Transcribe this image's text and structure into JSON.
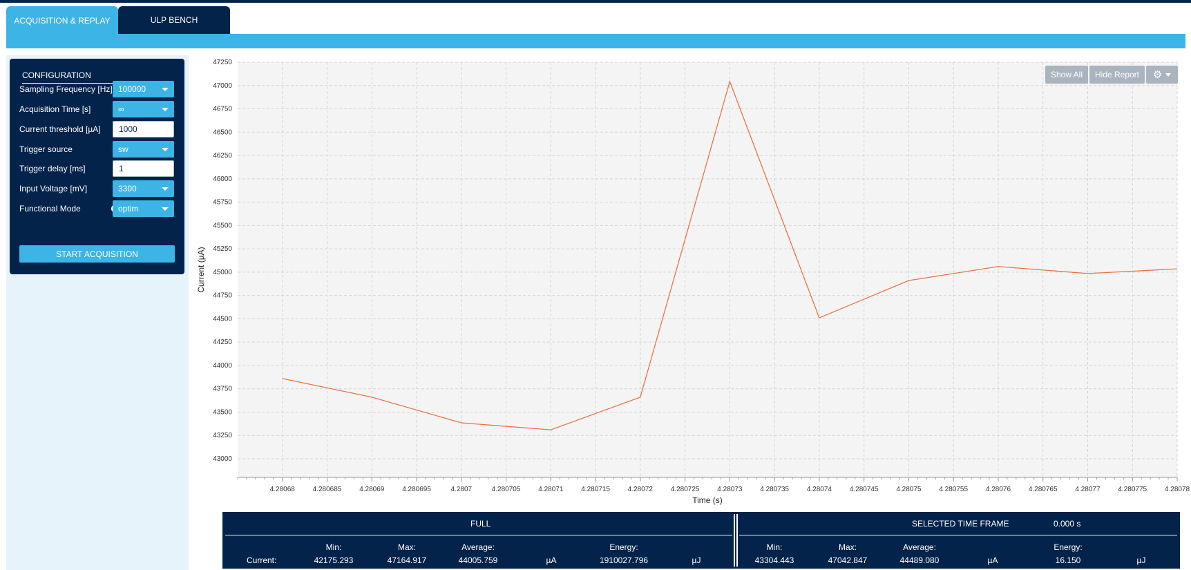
{
  "tabs": [
    {
      "label": "ACQUISITION & REPLAY",
      "active": true
    },
    {
      "label": "ULP BENCH",
      "active": false
    }
  ],
  "colors": {
    "navy": "#03234b",
    "accent": "#3cb4e6",
    "line": "#e8734a"
  },
  "config": {
    "title": "CONFIGURATION",
    "fields": [
      {
        "label": "Sampling Frequency [Hz]",
        "value": "100000",
        "type": "select"
      },
      {
        "label": "Acquisition Time [s]",
        "value": "∞",
        "type": "select"
      },
      {
        "label": "Current threshold [µA]",
        "value": "1000",
        "type": "input"
      },
      {
        "label": "Trigger source",
        "value": "sw",
        "type": "select"
      },
      {
        "label": "Trigger delay [ms]",
        "value": "1",
        "type": "input"
      },
      {
        "label": "Input Voltage [mV]",
        "value": "3300",
        "type": "select"
      },
      {
        "label": "Functional Mode",
        "value": "optim",
        "type": "select",
        "icon": "info-icon"
      }
    ],
    "start_label": "START ACQUISITION"
  },
  "chart_buttons": {
    "show_all": "Show All",
    "hide_report": "Hide Report",
    "settings_icon": "gear-icon"
  },
  "chart_data": {
    "type": "line",
    "xlabel": "Time (s)",
    "ylabel": "Current (µA)",
    "xlim": [
      4.280675,
      4.28078
    ],
    "ylim": [
      42800,
      47250
    ],
    "grid": true,
    "y_ticks": [
      43000,
      43250,
      43500,
      43750,
      44000,
      44250,
      44500,
      44750,
      45000,
      45250,
      45500,
      45750,
      46000,
      46250,
      46500,
      46750,
      47000,
      47250
    ],
    "x_ticks": [
      4.28068,
      4.280685,
      4.28069,
      4.280695,
      4.2807,
      4.280705,
      4.28071,
      4.280715,
      4.28072,
      4.280725,
      4.28073,
      4.280735,
      4.28074,
      4.280745,
      4.28075,
      4.280755,
      4.28076,
      4.280765,
      4.28077,
      4.280775,
      4.28078
    ],
    "x_tick_labels": [
      "4.28068",
      "4.280685",
      "4.28069",
      "4.280695",
      "4.2807",
      "4.280705",
      "4.28071",
      "4.280715",
      "4.28072",
      "4.280725",
      "4.28073",
      "4.280735",
      "4.28074",
      "4.280745",
      "4.28075",
      "4.280755",
      "4.28076",
      "4.280765",
      "4.28077",
      "4.280775",
      "4.28078"
    ],
    "series": [
      {
        "x": [
          4.28068,
          4.28069,
          4.2807,
          4.28071,
          4.28072,
          4.28073,
          4.28074,
          4.28075,
          4.28076,
          4.28077,
          4.28078
        ],
        "y": [
          43860,
          43660,
          43385,
          43310,
          43660,
          47042.847,
          44510,
          44910,
          45060,
          44985,
          45035
        ]
      }
    ]
  },
  "report": {
    "full": {
      "title": "FULL",
      "row_label": "Current:",
      "min_label": "Min:",
      "max_label": "Max:",
      "avg_label": "Average:",
      "energy_label": "Energy:",
      "min": "42175.293",
      "max": "47164.917",
      "avg": "44005.759",
      "current_unit": "µA",
      "energy": "1910027.796",
      "energy_unit": "µJ"
    },
    "selected": {
      "title": "SELECTED TIME FRAME",
      "duration": "0.000 s",
      "min_label": "Min:",
      "max_label": "Max:",
      "avg_label": "Average:",
      "energy_label": "Energy:",
      "min": "43304.443",
      "max": "47042.847",
      "avg": "44489.080",
      "current_unit": "µA",
      "energy": "16.150",
      "energy_unit": "µJ"
    }
  }
}
